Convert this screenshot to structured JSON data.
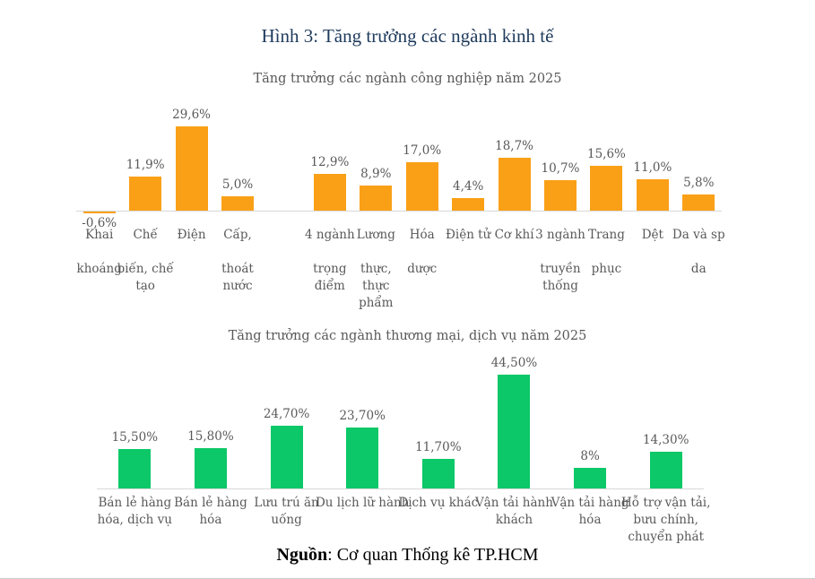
{
  "page": {
    "title": "Hình 3: Tăng trưởng các ngành kinh tế",
    "source_label": "Nguồn",
    "source_rest": ": Cơ quan Thống kê TP.HCM"
  },
  "colors": {
    "title_navy": "#1E3A5C",
    "text_gray": "#595959",
    "industry_bar_orange": "#FAA017",
    "service_bar_green": "#0CC868",
    "axis_gray": "#D9D9D9"
  },
  "chart_data": [
    {
      "type": "bar",
      "title": "Tăng trưởng các ngành công nghiệp năm 2025",
      "unit": "%",
      "bar_color": "#FAA017",
      "grid": false,
      "legend": false,
      "ylim": [
        -2,
        32
      ],
      "gap_after_index": 3,
      "categories": [
        "Khai khoáng",
        "Chế biến, chế tạo",
        "Điện",
        "Cấp, thoát nước",
        "4 ngành trọng điểm",
        "Lương thực, thực phẩm",
        "Hóa dược",
        "Điện tử",
        "Cơ khí",
        "3 ngành truyền thống",
        "Trang phục",
        "Dệt",
        "Da và sp da"
      ],
      "values": [
        -0.6,
        11.9,
        29.6,
        5.0,
        12.9,
        8.9,
        17.0,
        4.4,
        18.7,
        10.7,
        15.6,
        11.0,
        5.8
      ],
      "value_labels": [
        "-0,6%",
        "11,9%",
        "29,6%",
        "5,0%",
        "12,9%",
        "8,9%",
        "17,0%",
        "4,4%",
        "18,7%",
        "10,7%",
        "15,6%",
        "11,0%",
        "5,8%"
      ],
      "tick_labels": [
        "Khai\n\nkhoáng",
        "Chế\n\nbiến, chế\ntạo",
        "Điện",
        "Cấp,\n\nthoát\nnước",
        "4 ngành\n\ntrọng\nđiểm",
        "Lương\n\nthực,\nthực\nphẩm",
        "Hóa\n\ndược",
        "Điện tử",
        "Cơ khí",
        "3 ngành\n\ntruyền\nthống",
        "Trang\n\nphục",
        "Dệt",
        "Da và sp\n\nda"
      ]
    },
    {
      "type": "bar",
      "title": "Tăng trưởng các ngành thương mại, dịch vụ năm 2025",
      "unit": "%",
      "bar_color": "#0CC868",
      "grid": false,
      "legend": false,
      "ylim": [
        0,
        48
      ],
      "gap_after_index": null,
      "categories": [
        "Bán lẻ hàng hóa, dịch vụ",
        "Bán lẻ hàng hóa",
        "Lưu trú ăn uống",
        "Du lịch lữ hành",
        "Dịch vụ khác",
        "Vận tải hành khách",
        "Vận tải hàng hóa",
        "Hỗ trợ vận tải, bưu chính, chuyển phát"
      ],
      "values": [
        15.5,
        15.8,
        24.7,
        23.7,
        11.7,
        44.5,
        8,
        14.3
      ],
      "value_labels": [
        "15,50%",
        "15,80%",
        "24,70%",
        "23,70%",
        "11,70%",
        "44,50%",
        "8%",
        "14,30%"
      ],
      "tick_labels": [
        "Bán lẻ hàng\nhóa, dịch vụ",
        "Bán lẻ hàng\nhóa",
        "Lưu trú ăn\nuống",
        "Du lịch lữ hành",
        "Dịch vụ khác",
        "Vận tải hành\nkhách",
        "Vận tải hàng\nhóa",
        "Hỗ trợ vận tải,\nbưu chính,\nchuyển phát"
      ]
    }
  ]
}
